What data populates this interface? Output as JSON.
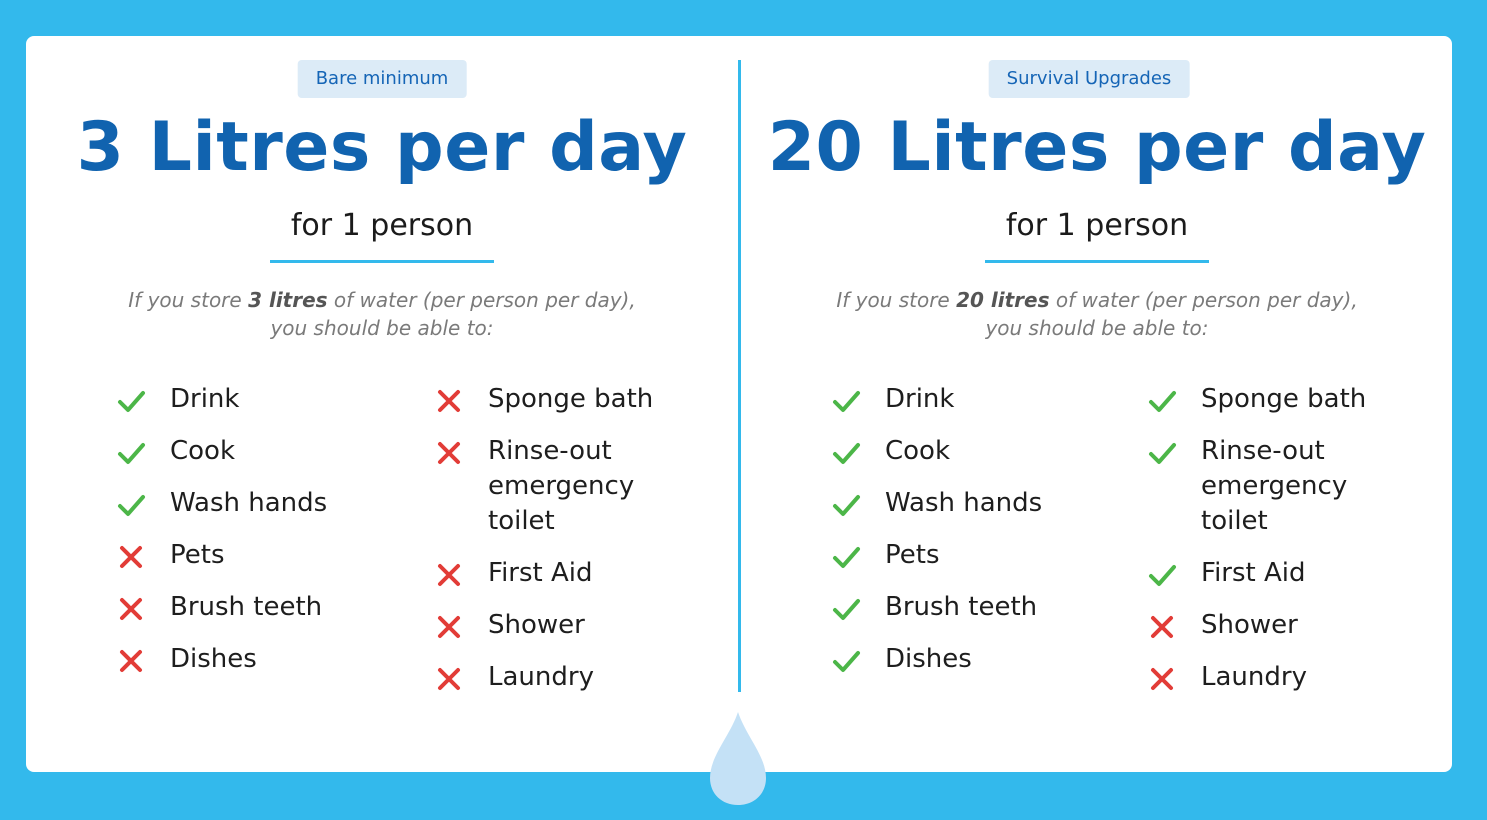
{
  "colors": {
    "background": "#33b9ec",
    "title": "#1163af",
    "check": "#4cb648",
    "cross": "#e23c37",
    "drop": "#c4e1f6"
  },
  "panels": [
    {
      "badge": "Bare minimum",
      "title": "3 Litres per day",
      "subtitle": "for 1 person",
      "note_prefix": "If you store ",
      "note_amount": "3 litres",
      "note_suffix": " of water (per person per day),",
      "note_line2": "you should be able to:",
      "col1": [
        {
          "label": "Drink",
          "status": "check"
        },
        {
          "label": "Cook",
          "status": "check"
        },
        {
          "label": "Wash hands",
          "status": "check"
        },
        {
          "label": "Pets",
          "status": "cross"
        },
        {
          "label": "Brush teeth",
          "status": "cross"
        },
        {
          "label": "Dishes",
          "status": "cross"
        }
      ],
      "col2": [
        {
          "label": "Sponge bath",
          "status": "cross"
        },
        {
          "label": "Rinse-out emergency toilet",
          "status": "cross"
        },
        {
          "label": "First Aid",
          "status": "cross"
        },
        {
          "label": "Shower",
          "status": "cross"
        },
        {
          "label": "Laundry",
          "status": "cross"
        }
      ]
    },
    {
      "badge": "Survival Upgrades",
      "title": "20 Litres per day",
      "subtitle": "for 1 person",
      "note_prefix": "If you store ",
      "note_amount": "20 litres",
      "note_suffix": " of water (per person per day),",
      "note_line2": "you should be able to:",
      "col1": [
        {
          "label": "Drink",
          "status": "check"
        },
        {
          "label": "Cook",
          "status": "check"
        },
        {
          "label": "Wash hands",
          "status": "check"
        },
        {
          "label": "Pets",
          "status": "check"
        },
        {
          "label": "Brush teeth",
          "status": "check"
        },
        {
          "label": "Dishes",
          "status": "check"
        }
      ],
      "col2": [
        {
          "label": "Sponge bath",
          "status": "check"
        },
        {
          "label": "Rinse-out emergency toilet",
          "status": "check"
        },
        {
          "label": "First Aid",
          "status": "check"
        },
        {
          "label": "Shower",
          "status": "cross"
        },
        {
          "label": "Laundry",
          "status": "cross"
        }
      ]
    }
  ]
}
